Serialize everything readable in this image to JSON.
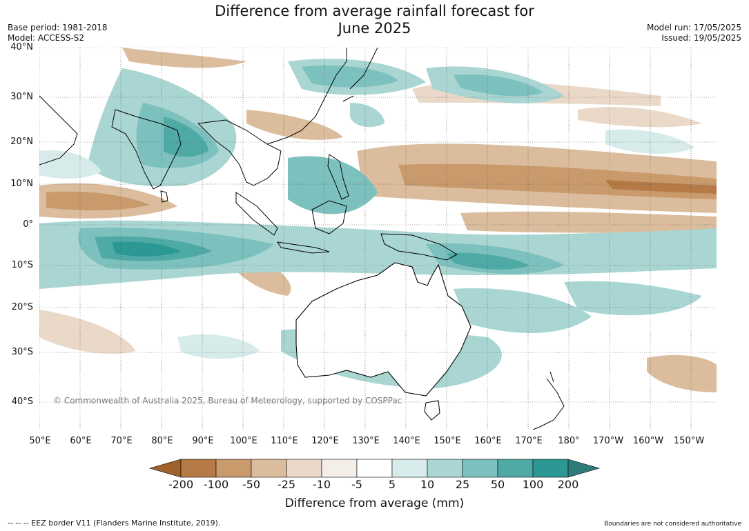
{
  "header": {
    "title_line1": "Difference from average rainfall forecast for",
    "title_line2": "June 2025",
    "base_period": "Base period: 1981-2018",
    "model": "Model: ACCESS-S2",
    "model_run": "Model run: 17/05/2025",
    "issued": "Issued: 19/05/2025"
  },
  "map": {
    "lat_labels": [
      "40°N",
      "30°N",
      "20°N",
      "10°N",
      "0°",
      "10°S",
      "20°S",
      "30°S",
      "40°S"
    ],
    "lon_labels": [
      "50°E",
      "60°E",
      "70°E",
      "80°E",
      "90°E",
      "100°E",
      "110°E",
      "120°E",
      "130°E",
      "140°E",
      "150°E",
      "160°E",
      "170°E",
      "180°",
      "170°W",
      "160°W",
      "150°W"
    ],
    "copyright": "© Commonwealth of Australia 2025, Bureau of Meteorology, supported by COSPPac"
  },
  "colorbar": {
    "ticks": [
      "-200",
      "-100",
      "-50",
      "-25",
      "-10",
      "-5",
      "5",
      "10",
      "25",
      "50",
      "100",
      "200"
    ],
    "colors": [
      "#a0622a",
      "#b57a45",
      "#c99a6c",
      "#dbbd9d",
      "#ead9c8",
      "#f3eee8",
      "#ffffff",
      "#d6ebea",
      "#a9d5d2",
      "#7cc1bd",
      "#4faaa6",
      "#2b9894",
      "#2e7c79"
    ],
    "label": "Difference from average (mm)"
  },
  "footer": {
    "eez_note": "--  --  -- EEZ border V11 (Flanders Marine Institute, 2019).",
    "boundaries_note": "Boundaries are not considered authoritative"
  }
}
